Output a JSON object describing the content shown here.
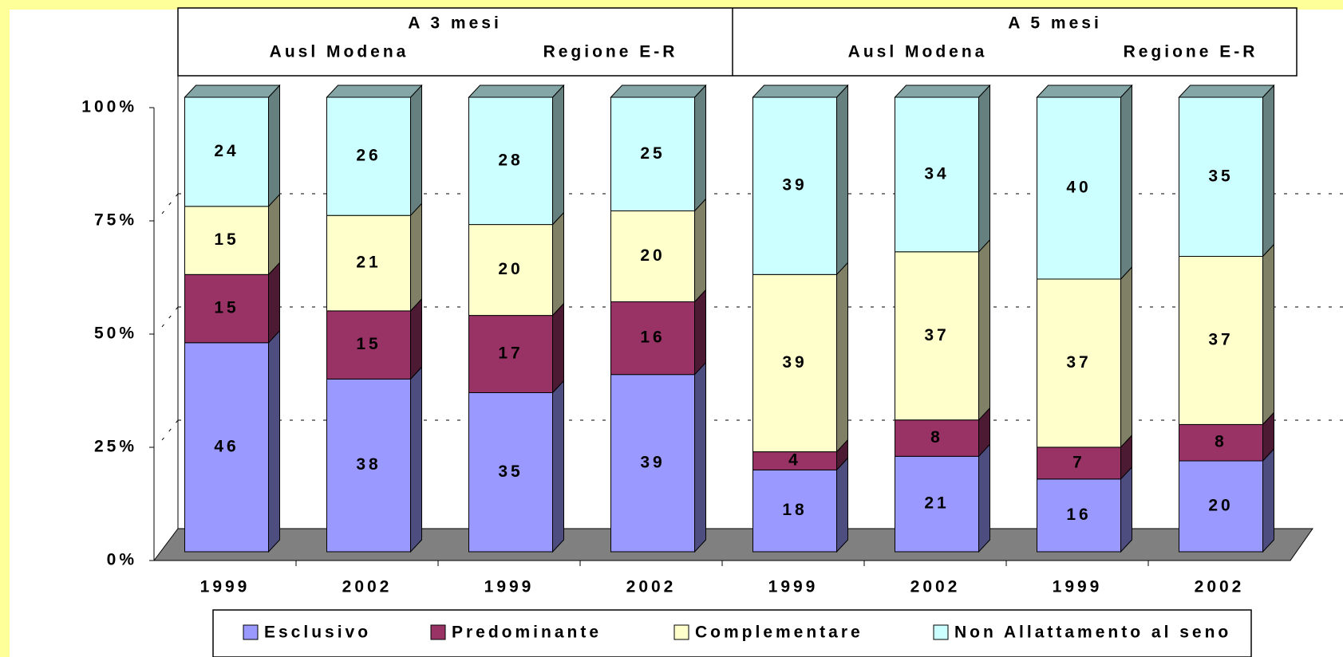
{
  "chart_data": {
    "type": "stacked-bar-3d",
    "header_groups": [
      {
        "label": "A 3 mesi",
        "sublabels": [
          "Ausl Modena",
          "Regione E-R"
        ]
      },
      {
        "label": "A 5 mesi",
        "sublabels": [
          "Ausl Modena",
          "Regione E-R"
        ]
      }
    ],
    "categories": [
      "1999",
      "2002",
      "1999",
      "2002",
      "1999",
      "2002",
      "1999",
      "2002"
    ],
    "series": [
      {
        "name": "Esclusivo",
        "color": "#9999ff",
        "values": [
          46,
          38,
          35,
          39,
          18,
          21,
          16,
          20
        ]
      },
      {
        "name": "Predominante",
        "color": "#993366",
        "values": [
          15,
          15,
          17,
          16,
          4,
          8,
          7,
          8
        ]
      },
      {
        "name": "Complementare",
        "color": "#ffffcc",
        "values": [
          15,
          21,
          20,
          20,
          39,
          37,
          37,
          37
        ]
      },
      {
        "name": "Non Allattamento al seno",
        "color": "#ccffff",
        "values": [
          24,
          26,
          28,
          25,
          39,
          34,
          40,
          35
        ]
      }
    ],
    "ylim": [
      0,
      100
    ],
    "yticks": [
      {
        "value": 0,
        "label": "0%"
      },
      {
        "value": 25,
        "label": "25%"
      },
      {
        "value": 50,
        "label": "50%"
      },
      {
        "value": 75,
        "label": "75%"
      },
      {
        "value": 100,
        "label": "100%"
      }
    ],
    "grid": true,
    "legend": "bottom"
  }
}
